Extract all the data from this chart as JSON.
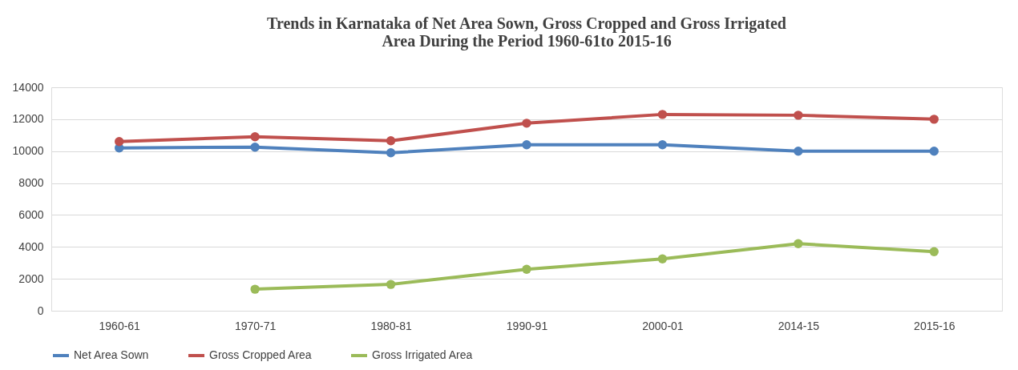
{
  "chart_data": {
    "type": "line",
    "title": [
      "Trends in  Karnataka of Net Area Sown, Gross Cropped and Gross Irrigated",
      "Area During the Period 1960-61to 2015-16"
    ],
    "categories": [
      "1960-61",
      "1970-71",
      "1980-81",
      "1990-91",
      "2000-01",
      "2014-15",
      "2015-16"
    ],
    "series": [
      {
        "name": "Net Area Sown",
        "color": "#4f81bd",
        "values": [
          10200,
          10250,
          9900,
          10400,
          10400,
          10000,
          10000
        ]
      },
      {
        "name": "Gross Cropped Area",
        "color": "#c0504d",
        "values": [
          10600,
          10900,
          10650,
          11750,
          12300,
          12250,
          12000
        ]
      },
      {
        "name": "Gross Irrigated Area",
        "color": "#9bbb59",
        "values": [
          null,
          1350,
          1650,
          2600,
          3250,
          4200,
          3700
        ]
      }
    ],
    "ylim": [
      0,
      14000
    ],
    "yticks": [
      0,
      2000,
      4000,
      6000,
      8000,
      10000,
      12000,
      14000
    ],
    "grid": "y",
    "legend": "bottom",
    "marker": "circle",
    "line_style": "solid"
  }
}
